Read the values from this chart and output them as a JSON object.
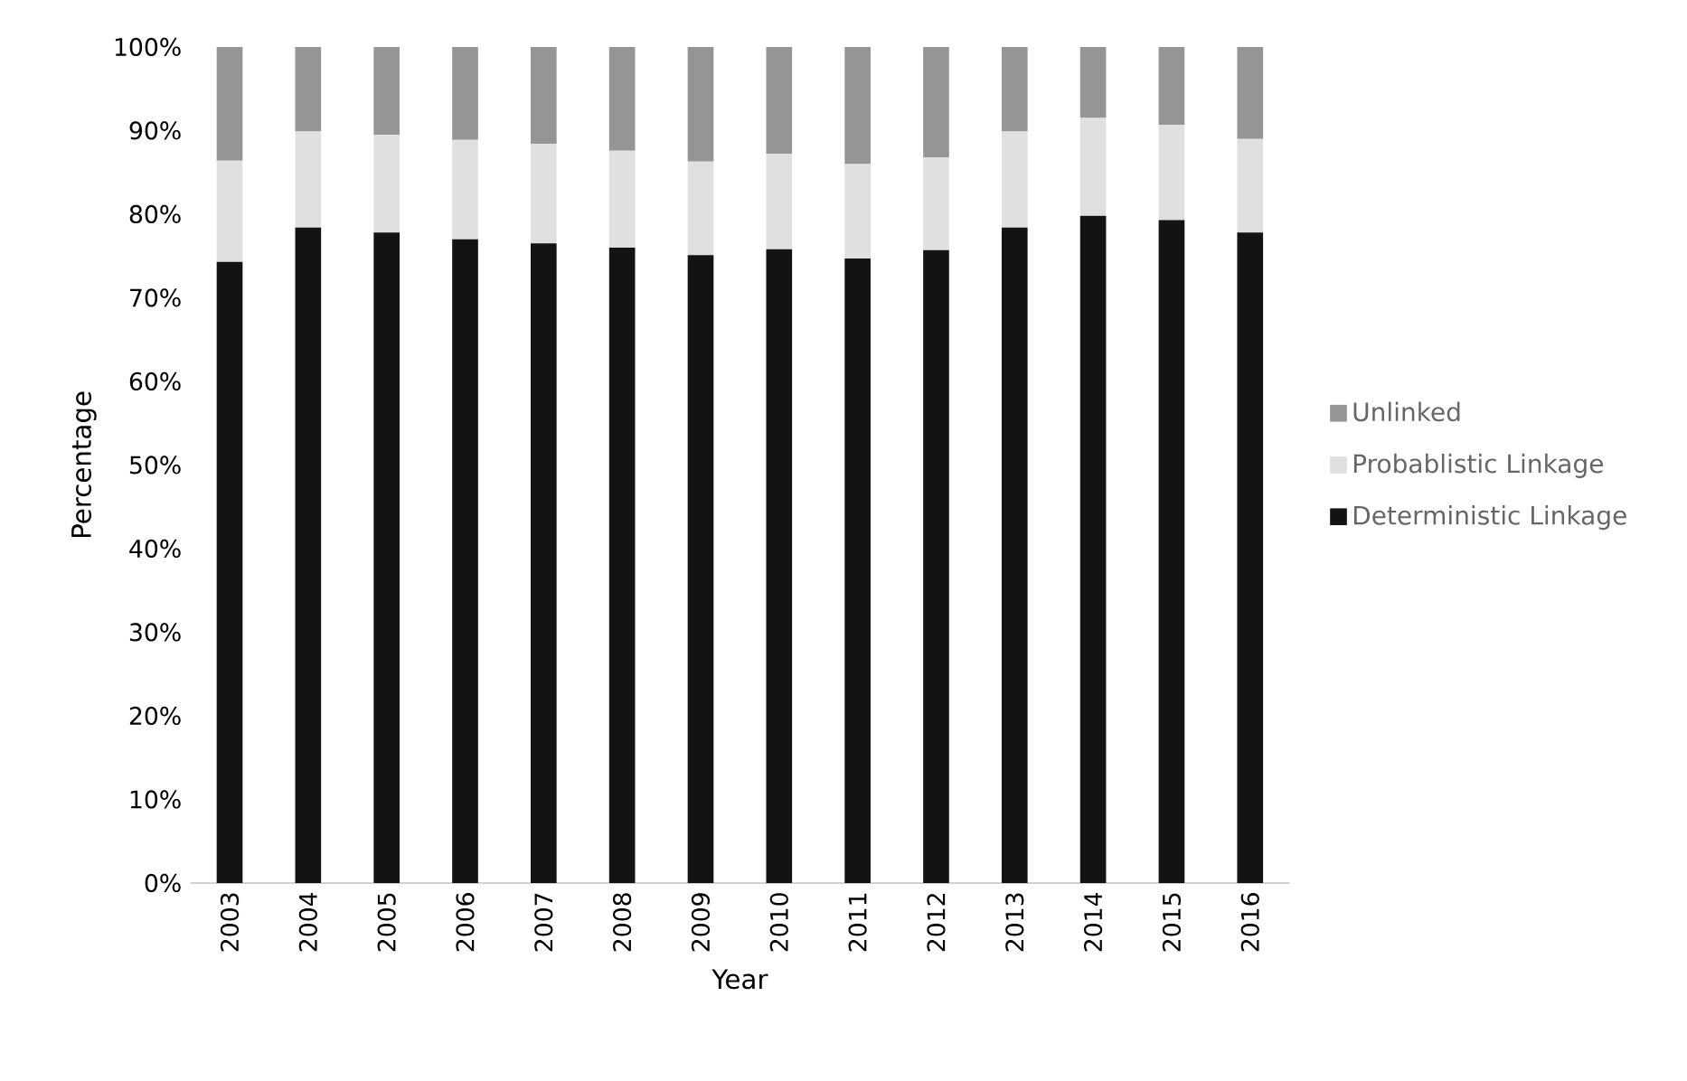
{
  "chart_data": {
    "type": "bar",
    "stacked": true,
    "xlabel": "Year",
    "ylabel": "Percentage",
    "categories": [
      "2003",
      "2004",
      "2005",
      "2006",
      "2007",
      "2008",
      "2009",
      "2010",
      "2011",
      "2012",
      "2013",
      "2014",
      "2015",
      "2016"
    ],
    "series": [
      {
        "name": "Deterministic Linkage",
        "color": "#131313",
        "values": [
          74.3,
          78.4,
          77.8,
          77.0,
          76.5,
          76.0,
          75.1,
          75.8,
          74.7,
          75.7,
          78.4,
          79.8,
          79.3,
          77.8
        ]
      },
      {
        "name": "Probablistic Linkage",
        "color": "#e0e0e0",
        "values": [
          12.1,
          11.5,
          11.7,
          11.9,
          11.9,
          11.6,
          11.2,
          11.4,
          11.3,
          11.1,
          11.5,
          11.7,
          11.4,
          11.2
        ]
      },
      {
        "name": "Unlinked",
        "color": "#959595",
        "values": [
          13.6,
          10.1,
          10.5,
          11.1,
          11.6,
          12.4,
          13.7,
          12.8,
          14.0,
          13.2,
          10.1,
          8.5,
          9.3,
          11.0
        ]
      }
    ],
    "ylim": [
      0,
      100
    ],
    "yticks": [
      {
        "value": 0,
        "label": "0%"
      },
      {
        "value": 10,
        "label": "10%"
      },
      {
        "value": 20,
        "label": "20%"
      },
      {
        "value": 30,
        "label": "30%"
      },
      {
        "value": 40,
        "label": "40%"
      },
      {
        "value": 50,
        "label": "50%"
      },
      {
        "value": 60,
        "label": "60%"
      },
      {
        "value": 70,
        "label": "70%"
      },
      {
        "value": 80,
        "label": "80%"
      },
      {
        "value": 90,
        "label": "90%"
      },
      {
        "value": 100,
        "label": "100%"
      }
    ],
    "legend": "right",
    "grid": false
  }
}
